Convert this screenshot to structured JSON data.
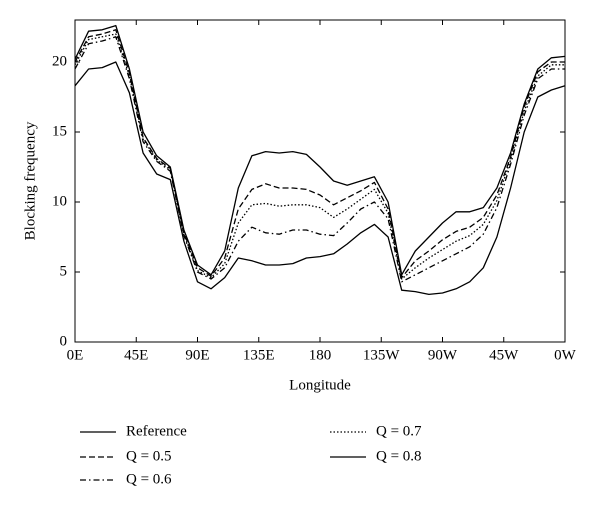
{
  "chart_data": {
    "type": "line",
    "xlabel": "Longitude",
    "ylabel": "Blocking frequency",
    "x": [
      0,
      10,
      20,
      30,
      40,
      50,
      60,
      70,
      80,
      90,
      100,
      110,
      120,
      130,
      140,
      150,
      160,
      170,
      180,
      190,
      200,
      210,
      220,
      230,
      240,
      250,
      260,
      270,
      280,
      290,
      300,
      310,
      320,
      330,
      340,
      350,
      360
    ],
    "series": [
      {
        "name": "Reference",
        "color": "#000000",
        "dash": "solid",
        "values": [
          20.2,
          22.2,
          22.3,
          22.6,
          19.5,
          15,
          13.3,
          12.5,
          8,
          5.5,
          4.8,
          6.5,
          11,
          13.3,
          13.6,
          13.5,
          13.6,
          13.4,
          12.5,
          11.5,
          11.2,
          11.5,
          11.8,
          10,
          4.8,
          6.5,
          7.5,
          8.5,
          9.3,
          9.3,
          9.6,
          11,
          13.5,
          17,
          19.5,
          20.3,
          20.4
        ]
      },
      {
        "name": "Q = 0.5",
        "color": "#000000",
        "dash": "dashed",
        "values": [
          20,
          21.8,
          22,
          22.3,
          19.2,
          14.6,
          13.1,
          12.4,
          7.8,
          5.3,
          4.7,
          6,
          9.5,
          10.9,
          11.3,
          11,
          11,
          10.9,
          10.5,
          9.8,
          10.3,
          10.8,
          11.4,
          9.5,
          4.6,
          5.8,
          6.5,
          7.3,
          7.9,
          8.2,
          8.9,
          10.5,
          13.2,
          16.8,
          19.3,
          20,
          20
        ]
      },
      {
        "name": "Q = 0.6",
        "color": "#000000",
        "dash": "dashdot",
        "values": [
          19.5,
          21.3,
          21.5,
          21.8,
          18.8,
          14.3,
          12.9,
          12.2,
          7.6,
          5,
          4.5,
          5.3,
          7.2,
          8.2,
          7.8,
          7.7,
          8,
          8,
          7.7,
          7.6,
          8.5,
          9.5,
          10,
          8.8,
          4.3,
          4.8,
          5.3,
          5.8,
          6.3,
          6.8,
          7.7,
          9.6,
          12.7,
          16.2,
          18.8,
          19.5,
          19.5
        ]
      },
      {
        "name": "Q = 0.7",
        "color": "#000000",
        "dash": "dotted",
        "values": [
          19.8,
          21.6,
          21.8,
          22,
          19,
          14.5,
          13,
          12.3,
          7.7,
          5.1,
          4.6,
          5.6,
          8.5,
          9.8,
          9.9,
          9.7,
          9.8,
          9.8,
          9.6,
          8.9,
          9.5,
          10.2,
          10.9,
          9.2,
          4.5,
          5.3,
          6,
          6.6,
          7.2,
          7.6,
          8.4,
          10.1,
          13,
          16.5,
          19,
          19.8,
          19.8
        ]
      },
      {
        "name": "Q = 0.8",
        "color": "#000000",
        "dash": "solid",
        "values": [
          18.3,
          19.5,
          19.6,
          20,
          17.8,
          13.5,
          12,
          11.6,
          7.2,
          4.3,
          3.8,
          4.6,
          6,
          5.8,
          5.5,
          5.5,
          5.6,
          6,
          6.1,
          6.3,
          7,
          7.8,
          8.4,
          7.5,
          3.7,
          3.6,
          3.4,
          3.5,
          3.8,
          4.3,
          5.3,
          7.5,
          11,
          15,
          17.5,
          18,
          18.3
        ]
      }
    ],
    "xlim": [
      0,
      360
    ],
    "xticks": [
      {
        "value": 0,
        "label": "0E"
      },
      {
        "value": 45,
        "label": "45E"
      },
      {
        "value": 90,
        "label": "90E"
      },
      {
        "value": 135,
        "label": "135E"
      },
      180,
      {
        "value": 225,
        "label": "135W"
      },
      {
        "value": 270,
        "label": "90W"
      },
      {
        "value": 315,
        "label": "45W"
      },
      {
        "value": 360,
        "label": "0W"
      }
    ],
    "ylim": [
      0,
      23
    ],
    "yticks": [
      0,
      5,
      10,
      15,
      20
    ]
  }
}
